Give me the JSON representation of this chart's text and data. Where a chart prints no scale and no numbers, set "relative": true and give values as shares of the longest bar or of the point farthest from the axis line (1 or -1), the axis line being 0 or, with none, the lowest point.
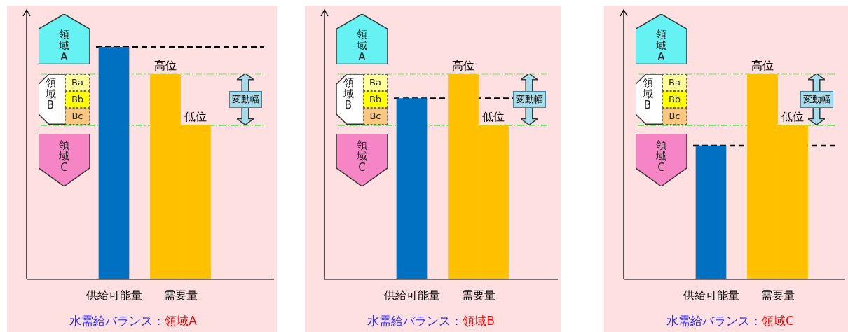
{
  "chart_data": [
    {
      "type": "bar",
      "title": "水需給バランス：",
      "subtitle": "領域A",
      "relative": true,
      "categories": [
        "供給可能量",
        "需要量"
      ],
      "series": [
        {
          "color": "#0070c0",
          "values": [
            1,
            null
          ]
        },
        {
          "name": "高位",
          "color": "#ffc000",
          "values": [
            null,
            0.885
          ]
        },
        {
          "name": "低位",
          "color": "#ffc000",
          "values": [
            null,
            0.664
          ]
        }
      ],
      "ref_lines": [
        {
          "axis": "y",
          "value": 1,
          "color": "#000000",
          "line_style": "dashed"
        },
        {
          "axis": "y",
          "value": 0.885,
          "color": "#33bb33",
          "line_style": "dashdot"
        },
        {
          "axis": "y",
          "value": 0.664,
          "color": "#33bb33",
          "line_style": "dashdot"
        }
      ],
      "annotations": [
        "領域A",
        "領域B",
        "Ba",
        "Bb",
        "Bc",
        "領域C",
        "変動幅"
      ]
    },
    {
      "type": "bar",
      "title": "水需給バランス：",
      "subtitle": "領域B",
      "relative": true,
      "categories": [
        "供給可能量",
        "需要量"
      ],
      "series": [
        {
          "color": "#0070c0",
          "values": [
            0.88,
            null
          ]
        },
        {
          "name": "高位",
          "color": "#ffc000",
          "values": [
            null,
            1
          ]
        },
        {
          "name": "低位",
          "color": "#ffc000",
          "values": [
            null,
            0.75
          ]
        }
      ],
      "ref_lines": [
        {
          "axis": "y",
          "value": 0.88,
          "color": "#000000",
          "line_style": "dashed"
        },
        {
          "axis": "y",
          "value": 1,
          "color": "#33bb33",
          "line_style": "dashdot"
        },
        {
          "axis": "y",
          "value": 0.75,
          "color": "#33bb33",
          "line_style": "dashdot"
        }
      ],
      "annotations": [
        "領域A",
        "領域B",
        "Ba",
        "Bb",
        "Bc",
        "領域C",
        "変動幅"
      ]
    },
    {
      "type": "bar",
      "title": "水需給バランス：",
      "subtitle": "領域C",
      "relative": true,
      "categories": [
        "供給可能量",
        "需要量"
      ],
      "series": [
        {
          "color": "#0070c0",
          "values": [
            0.65,
            null
          ]
        },
        {
          "name": "高位",
          "color": "#ffc000",
          "values": [
            null,
            1
          ]
        },
        {
          "name": "低位",
          "color": "#ffc000",
          "values": [
            null,
            0.75
          ]
        }
      ],
      "ref_lines": [
        {
          "axis": "y",
          "value": 0.65,
          "color": "#000000",
          "line_style": "dashed"
        },
        {
          "axis": "y",
          "value": 1,
          "color": "#33bb33",
          "line_style": "dashdot"
        },
        {
          "axis": "y",
          "value": 0.75,
          "color": "#33bb33",
          "line_style": "dashdot"
        }
      ],
      "annotations": [
        "領域A",
        "領域B",
        "Ba",
        "Bb",
        "Bc",
        "領域C",
        "変動幅"
      ]
    }
  ]
}
